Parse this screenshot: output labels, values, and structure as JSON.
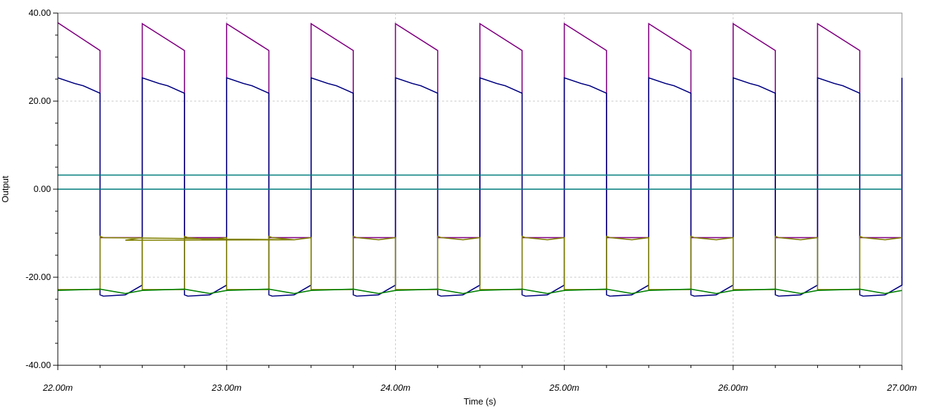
{
  "chart_data": {
    "type": "line",
    "xlabel": "Time (s)",
    "ylabel": "Output",
    "xlim": [
      0.022,
      0.027
    ],
    "ylim": [
      -40,
      40
    ],
    "x_ticks": [
      {
        "value": 0.022,
        "label": "22.00m"
      },
      {
        "value": 0.023,
        "label": "23.00m"
      },
      {
        "value": 0.024,
        "label": "24.00m"
      },
      {
        "value": 0.025,
        "label": "25.00m"
      },
      {
        "value": 0.026,
        "label": "26.00m"
      },
      {
        "value": 0.027,
        "label": "27.00m"
      }
    ],
    "y_ticks": [
      {
        "value": 40,
        "label": "40.00"
      },
      {
        "value": 20,
        "label": "20.00"
      },
      {
        "value": 0,
        "label": "0.00"
      },
      {
        "value": -20,
        "label": "-20.00"
      },
      {
        "value": -40,
        "label": "-40.00"
      }
    ],
    "grid": true,
    "legend": "none",
    "series": [
      {
        "color": "#800080",
        "x": [
          0.022,
          0.02225,
          0.02225,
          0.0225,
          0.0225,
          0.02275,
          0.02275,
          0.023,
          0.023,
          0.02325,
          0.02325,
          0.0235,
          0.0235,
          0.02375,
          0.02375,
          0.024,
          0.024,
          0.02425,
          0.02425,
          0.0245,
          0.0245,
          0.02475,
          0.02475,
          0.025,
          0.025,
          0.02525,
          0.02525,
          0.0255,
          0.0255,
          0.02575,
          0.02575,
          0.026,
          0.026,
          0.02625,
          0.02625,
          0.0265,
          0.0265,
          0.02675,
          0.02675,
          0.027
        ],
        "y": [
          37.8,
          31.5,
          -11,
          -11,
          37.6,
          31.5,
          -11,
          -11,
          37.6,
          31.5,
          -11,
          -11,
          37.6,
          31.5,
          -11,
          -11,
          37.6,
          31.5,
          -11,
          -11,
          37.6,
          31.5,
          -11,
          -11,
          37.6,
          31.5,
          -11,
          -11,
          37.6,
          31.5,
          -11,
          -11,
          37.6,
          31.5,
          -11,
          -11,
          37.6,
          31.5,
          -11,
          -11
        ]
      },
      {
        "color": "#000080",
        "x": [
          0.022,
          0.0221,
          0.02215,
          0.02225,
          0.02225,
          0.02227,
          0.0224,
          0.0225,
          0.0225,
          0.0226,
          0.02265,
          0.02275,
          0.02275,
          0.02277,
          0.0229,
          0.023,
          0.023,
          0.0231,
          0.02315,
          0.02325,
          0.02325,
          0.02327,
          0.0234,
          0.0235,
          0.0235,
          0.0236,
          0.02365,
          0.02375,
          0.02375,
          0.02377,
          0.0239,
          0.024,
          0.024,
          0.0241,
          0.02415,
          0.02425,
          0.02425,
          0.02427,
          0.0244,
          0.0245,
          0.0245,
          0.0246,
          0.02465,
          0.02475,
          0.02475,
          0.02477,
          0.0249,
          0.025,
          0.025,
          0.0251,
          0.02515,
          0.02525,
          0.02525,
          0.02527,
          0.0254,
          0.0255,
          0.0255,
          0.0256,
          0.02565,
          0.02575,
          0.02575,
          0.02577,
          0.0259,
          0.026,
          0.026,
          0.0261,
          0.02615,
          0.02625,
          0.02625,
          0.02627,
          0.0264,
          0.0265,
          0.0265,
          0.0266,
          0.02665,
          0.02675,
          0.02675,
          0.02677,
          0.0269,
          0.027,
          0.027
        ],
        "y": [
          25.3,
          24.0,
          23.5,
          21.8,
          -24.0,
          -24.3,
          -24.0,
          -21.8,
          25.3,
          24.0,
          23.5,
          21.8,
          -24.0,
          -24.3,
          -24.0,
          -21.8,
          25.3,
          24.0,
          23.5,
          21.8,
          -24.0,
          -24.3,
          -24.0,
          -21.8,
          25.3,
          24.0,
          23.5,
          21.8,
          -24.0,
          -24.3,
          -24.0,
          -21.8,
          25.3,
          24.0,
          23.5,
          21.8,
          -24.0,
          -24.3,
          -24.0,
          -21.8,
          25.3,
          24.0,
          23.5,
          21.8,
          -24.0,
          -24.3,
          -24.0,
          -21.8,
          25.3,
          24.0,
          23.5,
          21.8,
          -24.0,
          -24.3,
          -24.0,
          -21.8,
          25.3,
          24.0,
          23.5,
          21.8,
          -24.0,
          -24.3,
          -24.0,
          -21.8,
          25.3,
          24.0,
          23.5,
          21.8,
          -24.0,
          -24.3,
          -24.0,
          -21.8,
          25.3,
          24.0,
          23.5,
          21.8,
          -24.0,
          -24.3,
          -24.0,
          -21.8,
          25.3
        ]
      },
      {
        "color": "#808000",
        "x": [
          0.022,
          0.02225,
          0.02225,
          0.02227,
          0.0234,
          0.0224,
          0.0225,
          0.0225,
          0.02275,
          0.02275,
          0.02277,
          0.0229,
          0.023,
          0.023,
          0.02325,
          0.02325,
          0.02327,
          0.0234,
          0.0235,
          0.0235,
          0.02375,
          0.02375,
          0.02377,
          0.0239,
          0.024,
          0.024,
          0.02425,
          0.02425,
          0.02427,
          0.0244,
          0.0245,
          0.0245,
          0.02475,
          0.02475,
          0.02477,
          0.0249,
          0.025,
          0.025,
          0.02525,
          0.02525,
          0.02527,
          0.0254,
          0.0255,
          0.0255,
          0.02575,
          0.02575,
          0.02577,
          0.0259,
          0.026,
          0.026,
          0.02625,
          0.02625,
          0.02627,
          0.0264,
          0.0265,
          0.0265,
          0.02675,
          0.02675,
          0.02677,
          0.0269,
          0.027
        ],
        "y": [
          -22.8,
          -22.8,
          -10.7,
          -11.0,
          -11.5,
          -11.6,
          -11.0,
          -22.8,
          -22.8,
          -10.7,
          -11.0,
          -11.5,
          -11.0,
          -22.8,
          -22.8,
          -10.7,
          -11.0,
          -11.5,
          -11.0,
          -22.8,
          -22.8,
          -10.7,
          -11.0,
          -11.5,
          -11.0,
          -22.8,
          -22.8,
          -10.7,
          -11.0,
          -11.5,
          -11.0,
          -22.8,
          -22.8,
          -10.7,
          -11.0,
          -11.5,
          -11.0,
          -22.8,
          -22.8,
          -10.7,
          -11.0,
          -11.5,
          -11.0,
          -22.8,
          -22.8,
          -10.7,
          -11.0,
          -11.5,
          -11.0,
          -22.8,
          -22.8,
          -10.7,
          -11.0,
          -11.5,
          -11.0,
          -22.8,
          -22.8,
          -10.7,
          -11.0,
          -11.5,
          -11.0
        ]
      },
      {
        "color": "#008000",
        "x": [
          0.022,
          0.02225,
          0.0224,
          0.0225,
          0.02275,
          0.0229,
          0.023,
          0.02325,
          0.0234,
          0.0235,
          0.02375,
          0.0239,
          0.024,
          0.02425,
          0.0244,
          0.0245,
          0.02475,
          0.0249,
          0.025,
          0.02525,
          0.0254,
          0.0255,
          0.02575,
          0.0259,
          0.026,
          0.02625,
          0.0264,
          0.0265,
          0.02675,
          0.0269,
          0.027
        ],
        "y": [
          -23.0,
          -22.7,
          -23.7,
          -23.0,
          -22.7,
          -23.7,
          -23.0,
          -22.7,
          -23.7,
          -23.0,
          -22.7,
          -23.7,
          -23.0,
          -22.7,
          -23.7,
          -23.0,
          -22.7,
          -23.7,
          -23.0,
          -22.7,
          -23.7,
          -23.0,
          -22.7,
          -23.7,
          -23.0,
          -22.7,
          -23.7,
          -23.0,
          -22.7,
          -23.7,
          -23.0
        ]
      },
      {
        "color": "#008080",
        "x": [
          0.022,
          0.027
        ],
        "y": [
          3.2,
          3.2
        ]
      },
      {
        "color": "#008080",
        "x": [
          0.022,
          0.027
        ],
        "y": [
          0.0,
          0.0
        ]
      }
    ]
  }
}
